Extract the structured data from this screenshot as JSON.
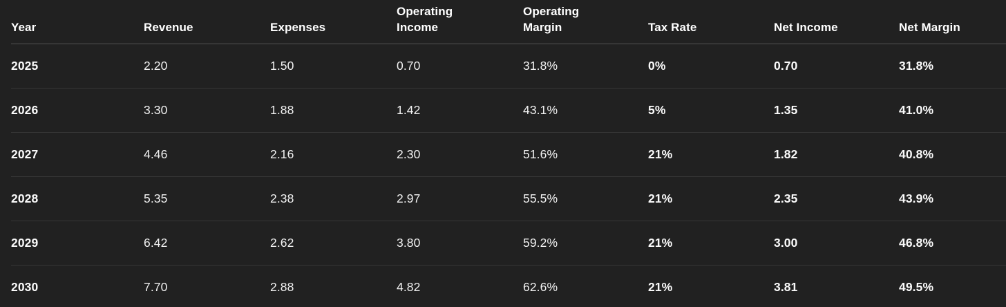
{
  "table": {
    "columns": [
      {
        "id": "year",
        "label": "Year",
        "bold_values": true
      },
      {
        "id": "revenue",
        "label": "Revenue",
        "bold_values": false
      },
      {
        "id": "expenses",
        "label": "Expenses",
        "bold_values": false
      },
      {
        "id": "operating-income",
        "label": "Operating\nIncome",
        "bold_values": false
      },
      {
        "id": "operating-margin",
        "label": "Operating\nMargin",
        "bold_values": false
      },
      {
        "id": "tax-rate",
        "label": "Tax Rate",
        "bold_values": true
      },
      {
        "id": "net-income",
        "label": "Net Income",
        "bold_values": true
      },
      {
        "id": "net-margin",
        "label": "Net Margin",
        "bold_values": true
      }
    ],
    "rows": [
      [
        "2025",
        "2.20",
        "1.50",
        "0.70",
        "31.8%",
        "0%",
        "0.70",
        "31.8%"
      ],
      [
        "2026",
        "3.30",
        "1.88",
        "1.42",
        "43.1%",
        "5%",
        "1.35",
        "41.0%"
      ],
      [
        "2027",
        "4.46",
        "2.16",
        "2.30",
        "51.6%",
        "21%",
        "1.82",
        "40.8%"
      ],
      [
        "2028",
        "5.35",
        "2.38",
        "2.97",
        "55.5%",
        "21%",
        "2.35",
        "43.9%"
      ],
      [
        "2029",
        "6.42",
        "2.62",
        "3.80",
        "59.2%",
        "21%",
        "3.00",
        "46.8%"
      ],
      [
        "2030",
        "7.70",
        "2.88",
        "4.82",
        "62.6%",
        "21%",
        "3.81",
        "49.5%"
      ]
    ]
  },
  "colors": {
    "background": "#212121",
    "text_regular": "#f2f2f2",
    "text_bold": "#fafafa",
    "header_text": "#ffffff",
    "header_separator": "#545454",
    "row_separator": "#373737"
  }
}
